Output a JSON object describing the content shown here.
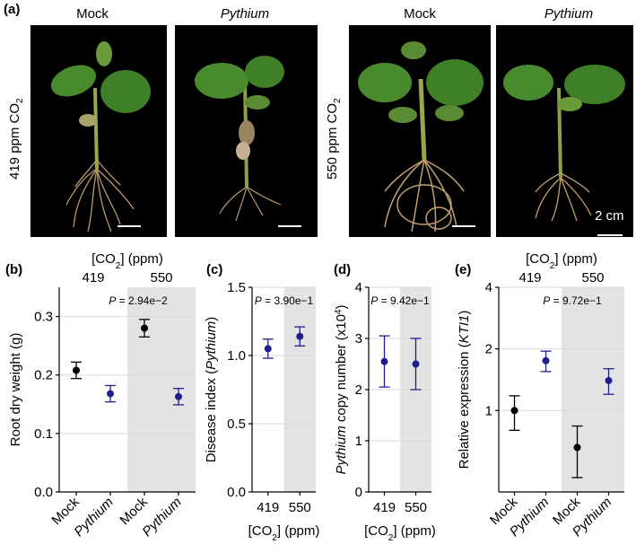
{
  "panel_a": {
    "letter": "(a)",
    "columns": [
      "Mock",
      "Pythium",
      "Mock",
      "Pythium"
    ],
    "rows": [
      "419 ppm CO",
      "550 ppm CO"
    ],
    "row_sub": "2",
    "scale_label": "2 cm"
  },
  "colors": {
    "mock": "#000000",
    "pythium": "#1f1f8f",
    "shade": "#e3e3e3",
    "grid": "#d9d9d9"
  },
  "chart_data": [
    {
      "id": "b",
      "letter": "(b)",
      "type": "scatter",
      "ylabel": "Root dry weight (g)",
      "ylim": [
        0,
        0.35
      ],
      "yticks": [
        "0.0",
        "0.1",
        "0.2",
        "0.3"
      ],
      "ytick_values": [
        0,
        0.1,
        0.2,
        0.3
      ],
      "top_axis_label": "[CO2] (ppm)",
      "top_ticks": [
        "419",
        "550"
      ],
      "categories": [
        "Mock",
        "Pythium",
        "Mock",
        "Pythium"
      ],
      "values": [
        0.208,
        0.168,
        0.28,
        0.163
      ],
      "err": [
        0.014,
        0.014,
        0.015,
        0.014
      ],
      "pvalue": "P = 2.94e−2"
    },
    {
      "id": "c",
      "letter": "(c)",
      "type": "scatter",
      "ylabel": "Disease index (Pythium)",
      "ylim": [
        0,
        1.5
      ],
      "yticks": [
        "0.0",
        "0.5",
        "1.0",
        "1.5"
      ],
      "ytick_values": [
        0,
        0.5,
        1.0,
        1.5
      ],
      "xlabel": "[CO2] (ppm)",
      "categories": [
        "419",
        "550"
      ],
      "values": [
        1.05,
        1.14
      ],
      "err": [
        0.07,
        0.07
      ],
      "pvalue": "P = 3.90e−1"
    },
    {
      "id": "d",
      "letter": "(d)",
      "type": "scatter",
      "ylabel": "Pythium copy number (x10^4)",
      "ylim": [
        0,
        4
      ],
      "yticks": [
        "0",
        "1",
        "2",
        "3",
        "4"
      ],
      "ytick_values": [
        0,
        1,
        2,
        3,
        4
      ],
      "xlabel": "[CO2] (ppm)",
      "categories": [
        "419",
        "550"
      ],
      "values": [
        2.55,
        2.5
      ],
      "err": [
        0.5,
        0.5
      ],
      "pvalue": "P = 9.42e−1"
    },
    {
      "id": "e",
      "letter": "(e)",
      "type": "scatter",
      "ylabel": "Relative expression (KTI1)",
      "yscale": "log2",
      "ylim": [
        0.4,
        4
      ],
      "yticks": [
        "1",
        "2",
        "4"
      ],
      "ytick_values": [
        1,
        2,
        4
      ],
      "top_axis_label": "[CO2] (ppm)",
      "top_ticks": [
        "419",
        "550"
      ],
      "categories": [
        "Mock",
        "Pythium",
        "Mock",
        "Pythium"
      ],
      "values": [
        1.0,
        1.75,
        0.66,
        1.4
      ],
      "err_low": [
        0.8,
        1.55,
        0.47,
        1.2
      ],
      "err_high": [
        1.18,
        1.95,
        0.84,
        1.6
      ],
      "pvalue": "P = 9.72e−1"
    }
  ]
}
